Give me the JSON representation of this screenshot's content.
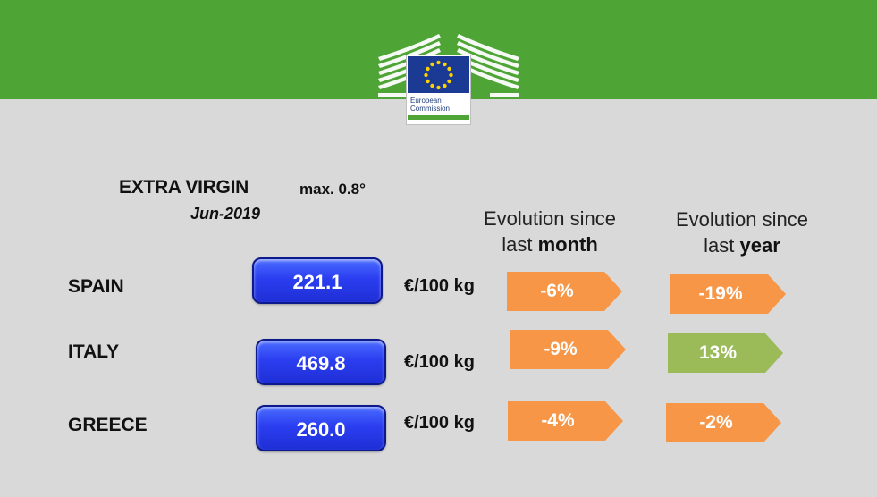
{
  "brand": {
    "line1": "European",
    "line2": "Commission"
  },
  "product": {
    "title": "EXTRA VIRGIN",
    "subtitle": "max. 0.8°",
    "date": "Jun-2019"
  },
  "columns": {
    "month": {
      "line1": "Evolution  since",
      "line2_pre": "last ",
      "line2_bold": "month"
    },
    "year": {
      "line1": "Evolution  since",
      "line2_pre": "last ",
      "line2_bold": "year"
    }
  },
  "colors": {
    "band": "#4ea535",
    "background": "#d9d9d9",
    "price_box": "#2b3ef0",
    "negative": "#f79646",
    "positive": "#9bbb59"
  },
  "rows": [
    {
      "country": "SPAIN",
      "price": "221.1",
      "unit": "€/100 kg",
      "month_change": "-6%",
      "year_change": "-19%",
      "year_color": "negative"
    },
    {
      "country": "ITALY",
      "price": "469.8",
      "unit": "€/100 kg",
      "month_change": "-9%",
      "year_change": "13%",
      "year_color": "positive"
    },
    {
      "country": "GREECE",
      "price": "260.0",
      "unit": "€/100 kg",
      "month_change": "-4%",
      "year_change": "-2%",
      "year_color": "negative"
    }
  ]
}
